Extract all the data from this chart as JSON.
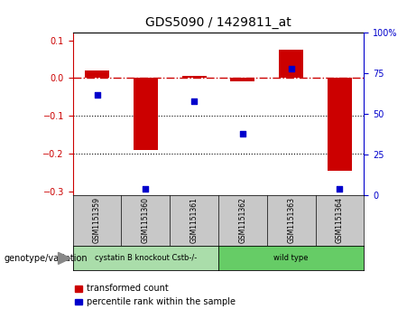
{
  "title": "GDS5090 / 1429811_at",
  "samples": [
    "GSM1151359",
    "GSM1151360",
    "GSM1151361",
    "GSM1151362",
    "GSM1151363",
    "GSM1151364"
  ],
  "transformed_count": [
    0.02,
    -0.19,
    0.005,
    -0.008,
    0.075,
    -0.245
  ],
  "percentile_rank": [
    62,
    4,
    58,
    38,
    78,
    4
  ],
  "ylim_left": [
    -0.31,
    0.12
  ],
  "ylim_right": [
    0,
    100
  ],
  "yticks_left": [
    0.1,
    0.0,
    -0.1,
    -0.2,
    -0.3
  ],
  "yticks_right": [
    100,
    75,
    50,
    25,
    0
  ],
  "bar_color": "#CC0000",
  "dot_color": "#0000CC",
  "hline_color": "#CC0000",
  "dotted_lines": [
    -0.1,
    -0.2
  ],
  "bar_width": 0.5,
  "legend_items": [
    {
      "label": "transformed count",
      "color": "#CC0000"
    },
    {
      "label": "percentile rank within the sample",
      "color": "#0000CC"
    }
  ],
  "genotype_label": "genotype/variation",
  "group_labels": [
    "cystatin B knockout Cstb-/-",
    "wild type"
  ],
  "group_sample_ranges": [
    [
      0,
      2
    ],
    [
      3,
      5
    ]
  ],
  "group_colors": [
    "#aaddaa",
    "#66cc66"
  ],
  "sample_box_color": "#C8C8C8"
}
